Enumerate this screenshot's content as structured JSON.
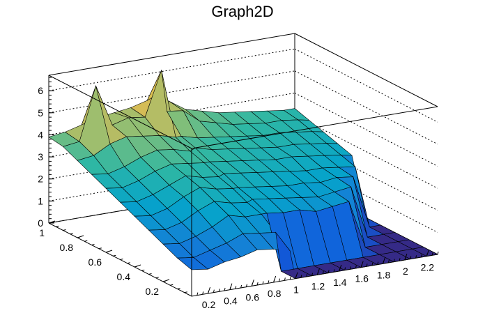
{
  "chart_data": {
    "type": "surface",
    "title": "Graph2D",
    "xlabel": "",
    "ylabel": "",
    "zlabel": "",
    "x_ticks": [
      "0.2",
      "0.4",
      "0.6",
      "0.8",
      "1",
      "1.2",
      "1.4",
      "1.6",
      "1.8",
      "2",
      "2.2"
    ],
    "y_ticks": [
      "0.2",
      "0.4",
      "0.6",
      "0.8",
      "1"
    ],
    "z_ticks": [
      "0",
      "1",
      "2",
      "3",
      "4",
      "5",
      "6"
    ],
    "xlim": [
      0.05,
      2.3
    ],
    "ylim": [
      0,
      1
    ],
    "zlim": [
      0,
      6.7
    ],
    "grid": true,
    "colormap": [
      "#352a87",
      "#0f5cdd",
      "#1481d6",
      "#06a4ca",
      "#2eb7a4",
      "#87bf77",
      "#d1bb59",
      "#fec832",
      "#f9fb0e"
    ],
    "surface_x": [
      0.05,
      0.2,
      0.35,
      0.5,
      0.65,
      0.8,
      0.95,
      1.0,
      1.15,
      1.3,
      1.45,
      1.6,
      1.75,
      1.9,
      2.05,
      2.2,
      2.3
    ],
    "surface_y": [
      0.0,
      0.1,
      0.2,
      0.3,
      0.4,
      0.5,
      0.6,
      0.7,
      0.8,
      0.9,
      1.0
    ],
    "surface_z": [
      [
        1.2,
        1.1,
        1.3,
        1.4,
        1.6,
        1.5,
        1.3,
        0.0,
        0.0,
        0.0,
        0.0,
        0.0,
        0.0,
        0.0,
        0.0,
        0.0,
        0.0
      ],
      [
        1.4,
        1.3,
        1.5,
        1.7,
        2.0,
        1.9,
        1.8,
        0.0,
        0.0,
        0.0,
        0.0,
        0.0,
        0.0,
        0.0,
        0.0,
        0.0,
        0.0
      ],
      [
        1.7,
        1.6,
        1.8,
        2.1,
        2.5,
        2.3,
        2.3,
        2.3,
        2.2,
        2.2,
        2.0,
        2.1,
        2.2,
        0.0,
        0.0,
        0.0,
        0.0
      ],
      [
        2.0,
        1.9,
        2.1,
        2.5,
        2.8,
        2.6,
        2.5,
        2.6,
        2.5,
        2.4,
        2.3,
        2.2,
        2.3,
        2.4,
        0.0,
        0.0,
        0.0
      ],
      [
        2.3,
        2.2,
        2.4,
        2.8,
        3.1,
        2.9,
        2.8,
        2.8,
        2.7,
        2.6,
        2.5,
        2.5,
        2.4,
        2.5,
        2.4,
        0.0,
        0.0
      ],
      [
        2.6,
        2.5,
        2.7,
        3.0,
        3.3,
        3.1,
        3.0,
        3.1,
        3.0,
        2.9,
        2.8,
        2.7,
        2.6,
        2.6,
        2.5,
        2.4,
        0.0
      ],
      [
        2.9,
        2.8,
        3.0,
        3.3,
        3.5,
        3.4,
        3.3,
        3.3,
        3.2,
        3.1,
        3.0,
        2.9,
        2.9,
        2.8,
        2.7,
        2.6,
        2.5
      ],
      [
        3.2,
        3.1,
        3.3,
        3.6,
        3.8,
        3.7,
        3.5,
        3.6,
        3.4,
        3.3,
        3.2,
        3.1,
        3.0,
        3.0,
        2.9,
        2.8,
        2.7
      ],
      [
        3.5,
        3.6,
        4.0,
        4.2,
        4.1,
        4.0,
        3.8,
        3.8,
        3.6,
        3.5,
        3.4,
        3.3,
        3.2,
        3.2,
        3.1,
        3.0,
        2.9
      ],
      [
        3.8,
        3.9,
        6.3,
        4.4,
        4.6,
        4.5,
        6.5,
        4.6,
        4.5,
        3.9,
        3.7,
        3.5,
        3.4,
        3.3,
        3.3,
        3.2,
        3.1
      ],
      [
        3.9,
        4.0,
        4.2,
        4.4,
        4.5,
        4.6,
        4.8,
        4.9,
        4.6,
        4.1,
        3.9,
        3.7,
        3.6,
        3.5,
        3.4,
        3.3,
        3.3
      ]
    ]
  }
}
